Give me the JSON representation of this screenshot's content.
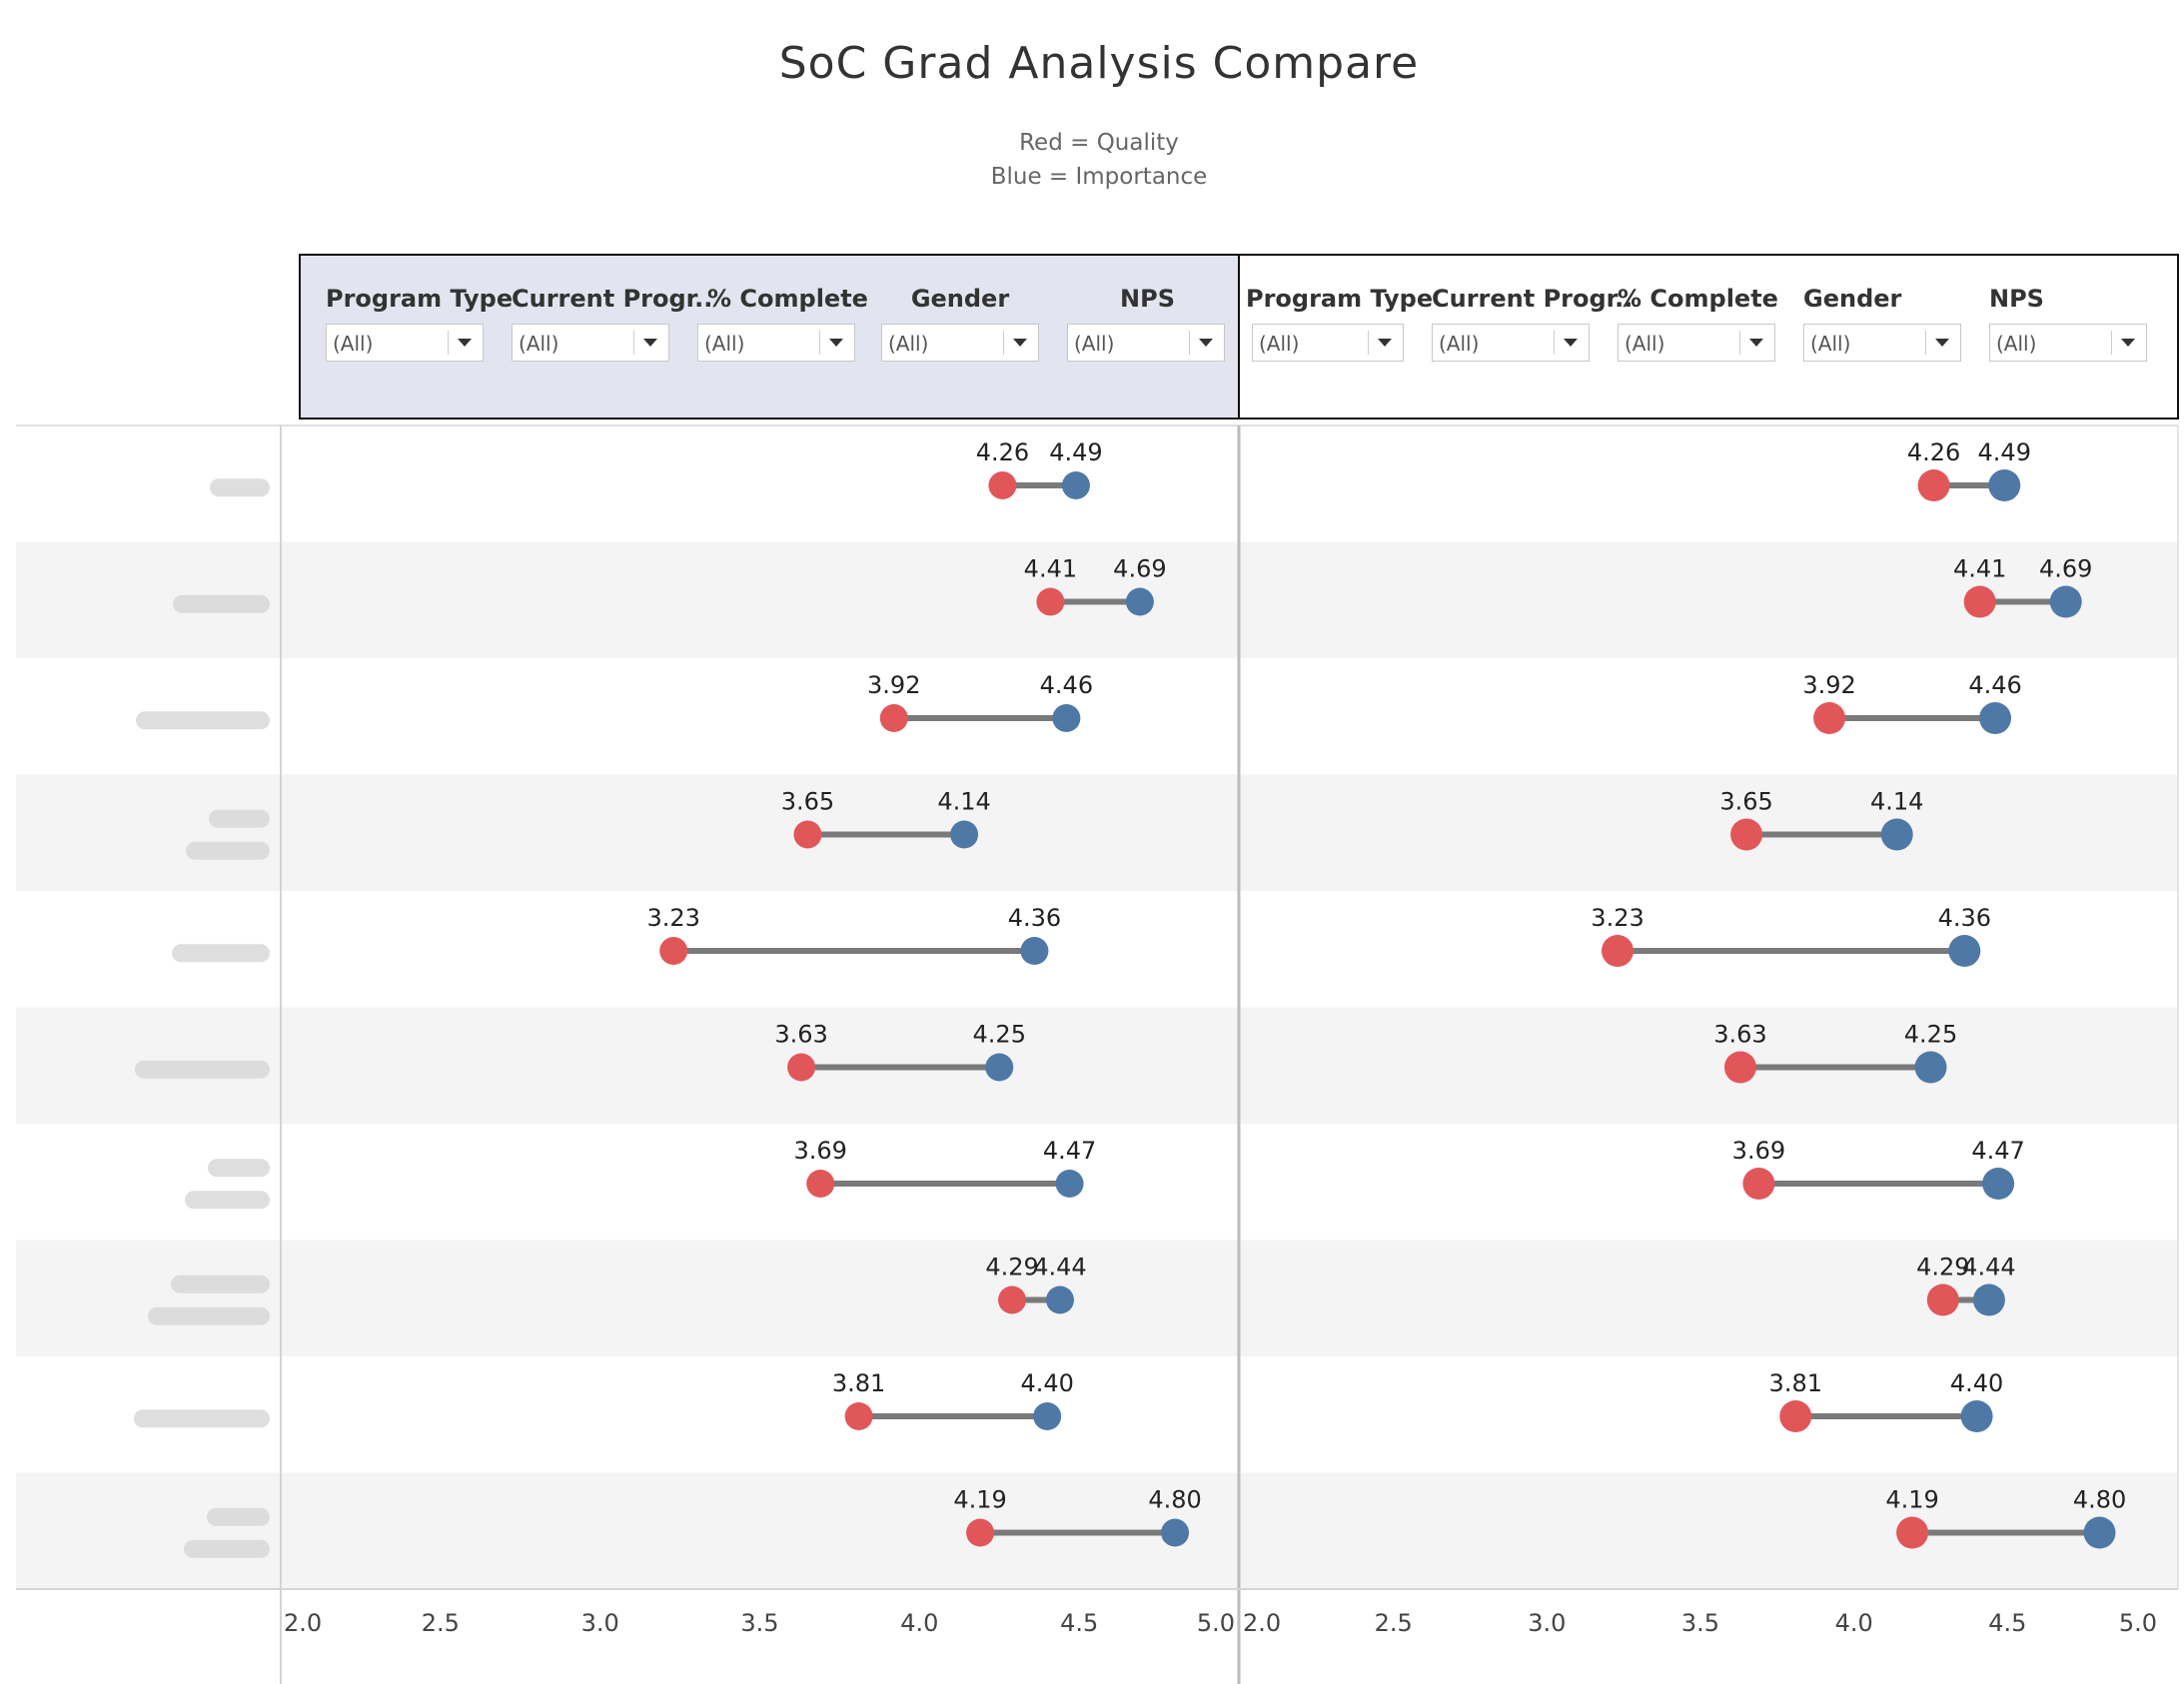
{
  "title": "SoC Grad Analysis Compare",
  "legend": {
    "red": "Red = Quality",
    "blue": "Blue = Importance"
  },
  "filters": {
    "left": [
      {
        "label": "Program Type",
        "value": "(All)"
      },
      {
        "label": "Current Progr..",
        "value": "(All)"
      },
      {
        "label": "% Complete",
        "value": "(All)"
      },
      {
        "label": "Gender",
        "value": "(All)"
      },
      {
        "label": "NPS",
        "value": "(All)"
      }
    ],
    "right": [
      {
        "label": "Program Type",
        "value": "(All)"
      },
      {
        "label": "Current Progr..",
        "value": "(All)"
      },
      {
        "label": "% Complete",
        "value": "(All)"
      },
      {
        "label": "Gender",
        "value": "(All)"
      },
      {
        "label": "NPS",
        "value": "(All)"
      }
    ]
  },
  "colors": {
    "quality": "#e15759",
    "importance": "#4e79a7",
    "connector": "#7a7a7a",
    "band": "#f4f4f4",
    "grid": "#d4d4d4"
  },
  "chart_data": [
    {
      "type": "dumbbell",
      "xlim": [
        2.0,
        5.0
      ],
      "xticks": [
        "2.0",
        "2.5",
        "3.0",
        "3.5",
        "4.0",
        "4.5",
        "5.0"
      ],
      "row_labels_blurred": true,
      "series": [
        {
          "name": "Quality",
          "values": [
            4.26,
            4.41,
            3.92,
            3.65,
            3.23,
            3.63,
            3.69,
            4.29,
            3.81,
            4.19
          ]
        },
        {
          "name": "Importance",
          "values": [
            4.49,
            4.69,
            4.46,
            4.14,
            4.36,
            4.25,
            4.47,
            4.44,
            4.4,
            4.8
          ]
        }
      ],
      "data_labels": {
        "quality": [
          "4.26",
          "4.41",
          "3.92",
          "3.65",
          "3.23",
          "3.63",
          "3.69",
          "4.29",
          "3.81",
          "4.19"
        ],
        "importance": [
          "4.49",
          "4.69",
          "4.46",
          "4.14",
          "4.36",
          "4.25",
          "4.47",
          "4.44",
          "4.40",
          "4.80"
        ]
      }
    },
    {
      "type": "dumbbell",
      "xlim": [
        2.0,
        5.0
      ],
      "xticks": [
        "2.0",
        "2.5",
        "3.0",
        "3.5",
        "4.0",
        "4.5",
        "5.0"
      ],
      "series": [
        {
          "name": "Quality",
          "values": [
            4.26,
            4.41,
            3.92,
            3.65,
            3.23,
            3.63,
            3.69,
            4.29,
            3.81,
            4.19
          ]
        },
        {
          "name": "Importance",
          "values": [
            4.49,
            4.69,
            4.46,
            4.14,
            4.36,
            4.25,
            4.47,
            4.44,
            4.4,
            4.8
          ]
        }
      ],
      "data_labels": {
        "quality": [
          "4.26",
          "4.41",
          "3.92",
          "3.65",
          "3.23",
          "3.63",
          "3.69",
          "4.29",
          "3.81",
          "4.19"
        ],
        "importance": [
          "4.49",
          "4.69",
          "4.46",
          "4.14",
          "4.36",
          "4.25",
          "4.47",
          "4.44",
          "4.40",
          "4.80"
        ]
      }
    }
  ]
}
